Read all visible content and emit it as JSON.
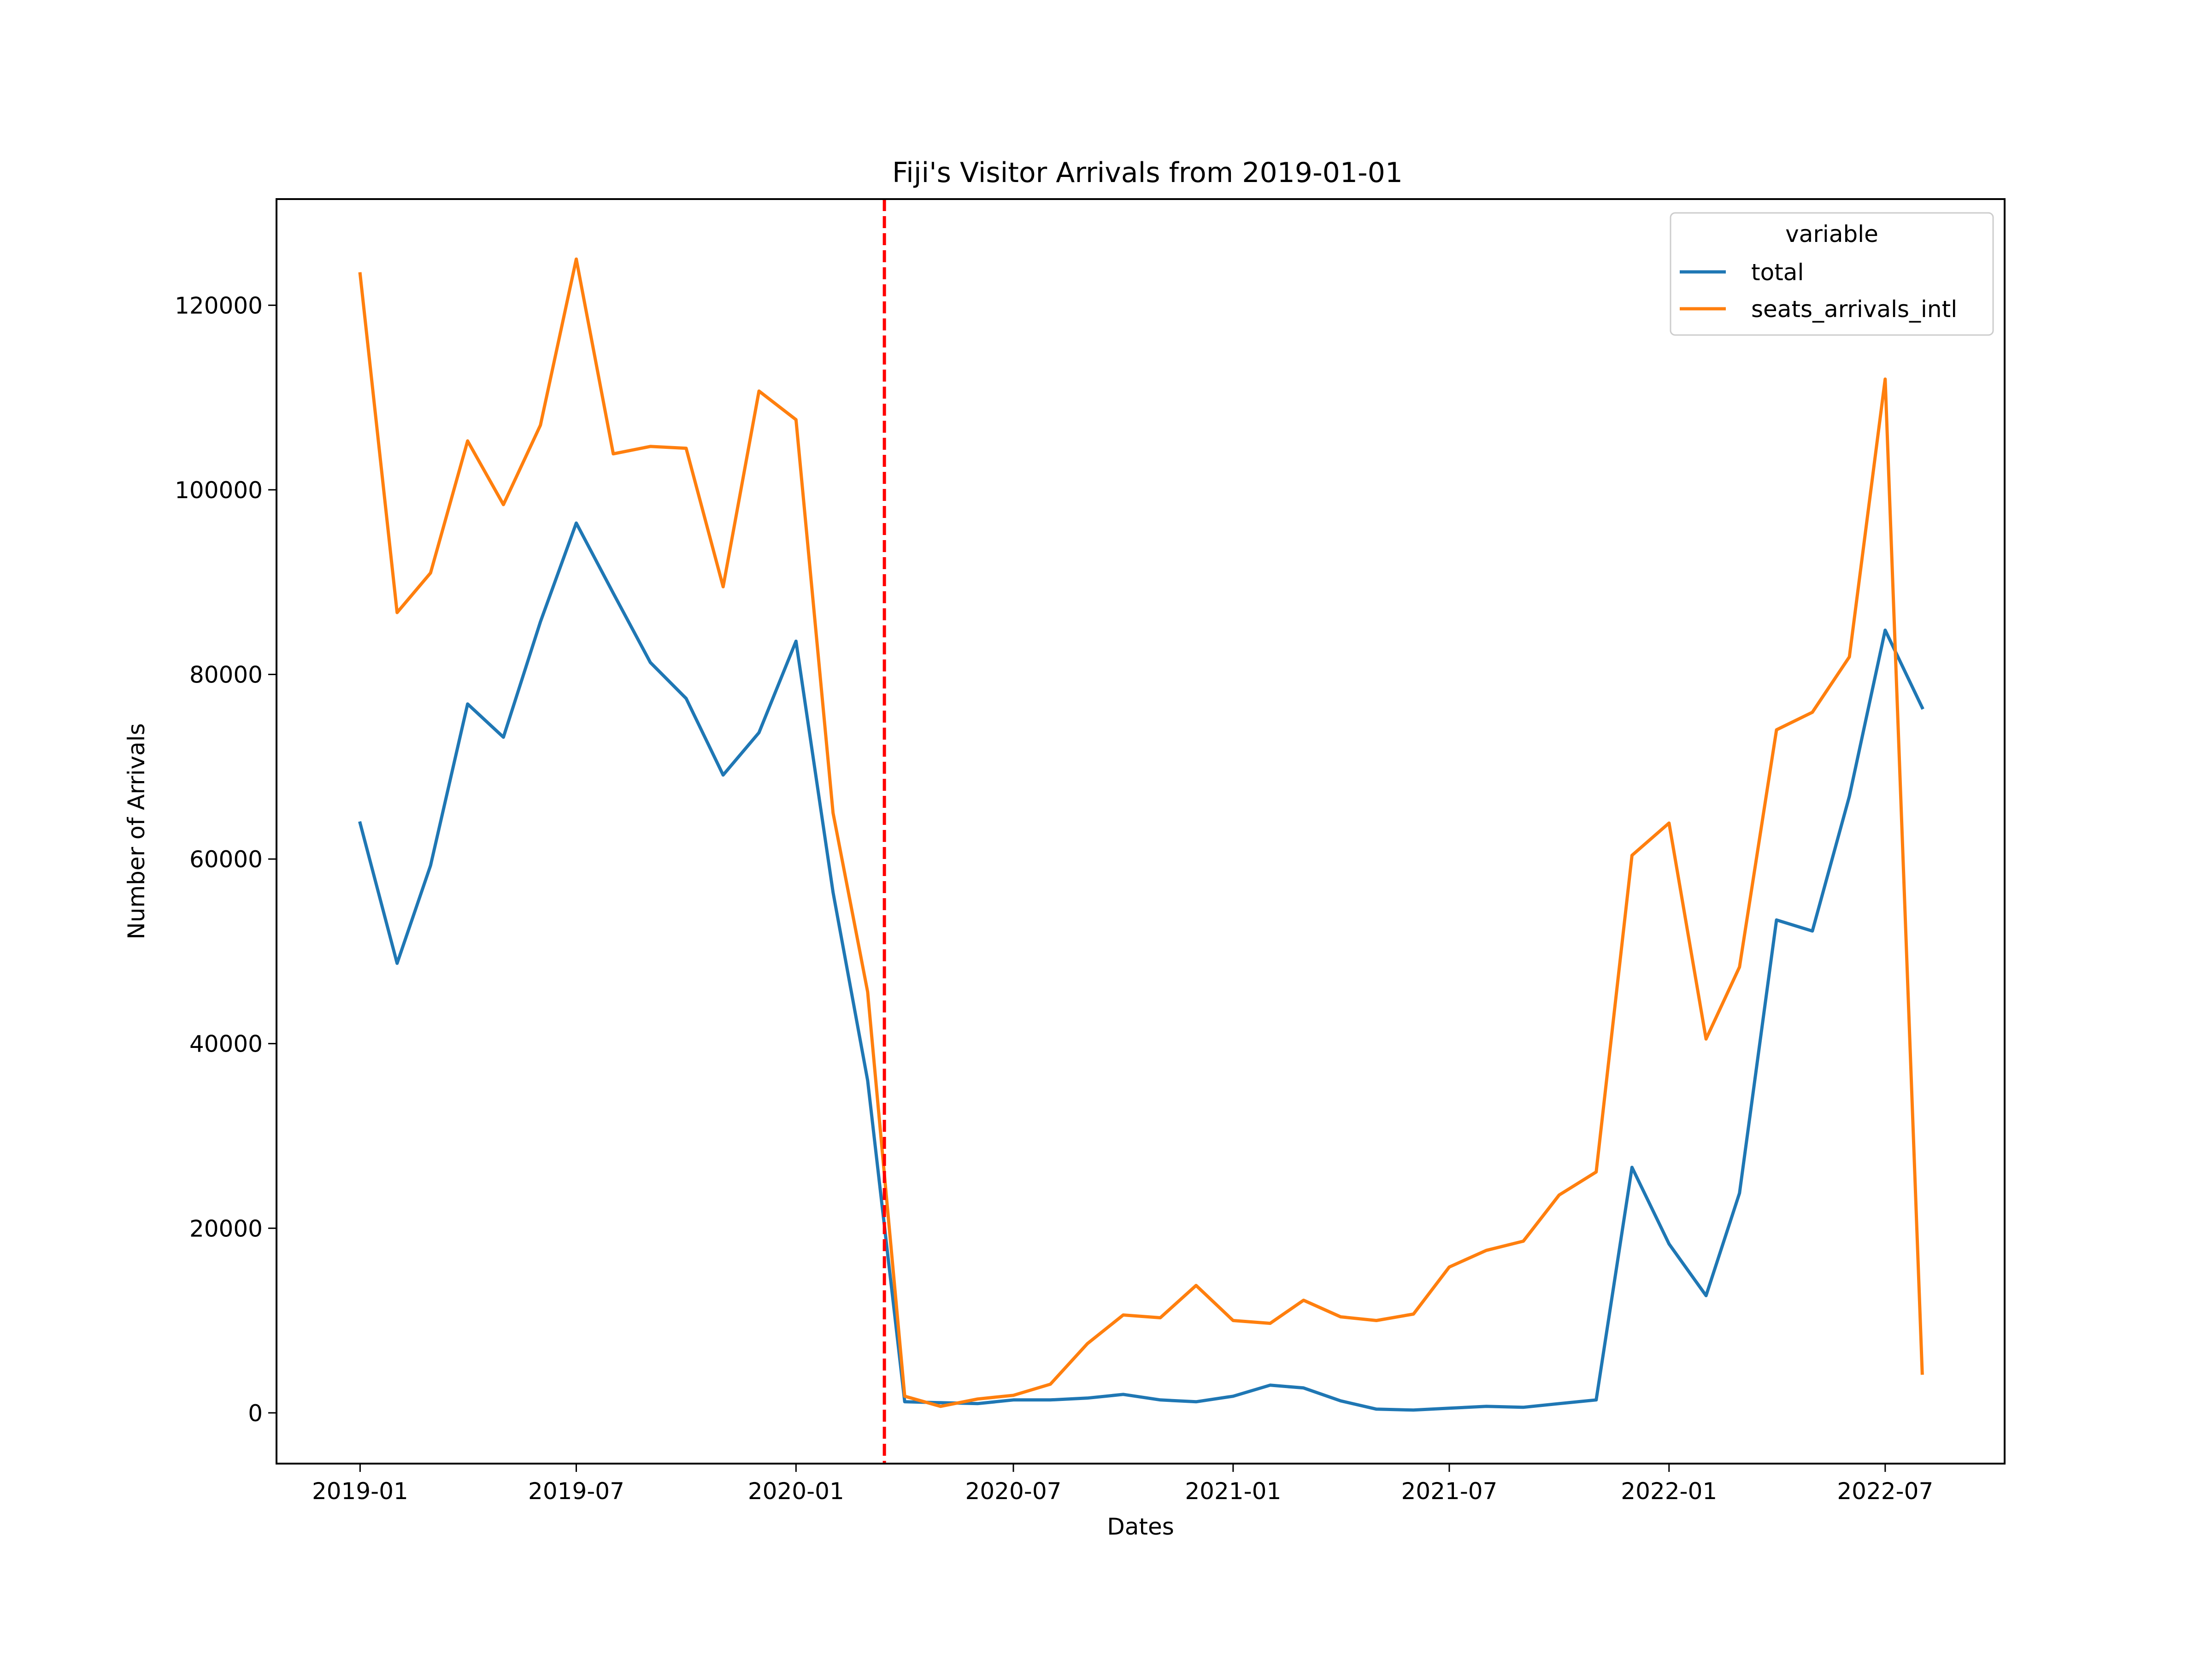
{
  "colors": {
    "total": "#1f77b4",
    "seats_arrivals_intl": "#ff7f0e",
    "event_line": "#ff0000"
  },
  "chart_data": {
    "type": "line",
    "title": "Fiji's Visitor Arrivals from 2019-01-01",
    "xlabel": "Dates",
    "ylabel": "Number of Arrivals",
    "x": [
      "2019-01",
      "2019-02",
      "2019-03",
      "2019-04",
      "2019-05",
      "2019-06",
      "2019-07",
      "2019-08",
      "2019-09",
      "2019-10",
      "2019-11",
      "2019-12",
      "2020-01",
      "2020-02",
      "2020-03",
      "2020-04",
      "2020-05",
      "2020-06",
      "2020-07",
      "2020-08",
      "2020-09",
      "2020-10",
      "2020-11",
      "2020-12",
      "2021-01",
      "2021-02",
      "2021-03",
      "2021-04",
      "2021-05",
      "2021-06",
      "2021-07",
      "2021-08",
      "2021-09",
      "2021-10",
      "2021-11",
      "2021-12",
      "2022-01",
      "2022-02",
      "2022-03",
      "2022-04",
      "2022-05",
      "2022-06",
      "2022-07",
      "2022-08"
    ],
    "x_range": [
      "2018-10-23",
      "2022-10-09"
    ],
    "x_ticks": [
      "2019-01",
      "2019-07",
      "2020-01",
      "2020-07",
      "2021-01",
      "2021-07",
      "2022-01",
      "2022-07"
    ],
    "ylim": [
      -5500,
      131500
    ],
    "y_ticks": [
      0,
      20000,
      40000,
      60000,
      80000,
      100000,
      120000
    ],
    "grid": false,
    "legend_title": "variable",
    "legend_position": "top-right",
    "vline": {
      "date": "2020-03-15",
      "style": "dashed"
    },
    "series": [
      {
        "name": "total",
        "values": [
          63900,
          48700,
          59300,
          76800,
          73200,
          85700,
          96400,
          88800,
          81300,
          77400,
          69100,
          73700,
          83600,
          56400,
          36000,
          1200,
          1100,
          1000,
          1400,
          1400,
          1600,
          2000,
          1400,
          1200,
          1800,
          3000,
          2700,
          1300,
          400,
          300,
          500,
          700,
          600,
          1000,
          1400,
          26600,
          18300,
          12700,
          23800,
          53400,
          52200,
          66800,
          84800,
          76400
        ]
      },
      {
        "name": "seats_arrivals_intl",
        "values": [
          123400,
          86700,
          91000,
          105300,
          98400,
          107000,
          125000,
          103900,
          104700,
          104500,
          89500,
          110700,
          107600,
          65000,
          45600,
          1800,
          700,
          1500,
          1900,
          3100,
          7500,
          10600,
          10300,
          13800,
          10000,
          9700,
          12200,
          10400,
          10000,
          10700,
          15800,
          17600,
          18600,
          23600,
          26100,
          60400,
          63900,
          40500,
          48300,
          74000,
          75900,
          81900,
          112000,
          4300
        ]
      }
    ]
  }
}
